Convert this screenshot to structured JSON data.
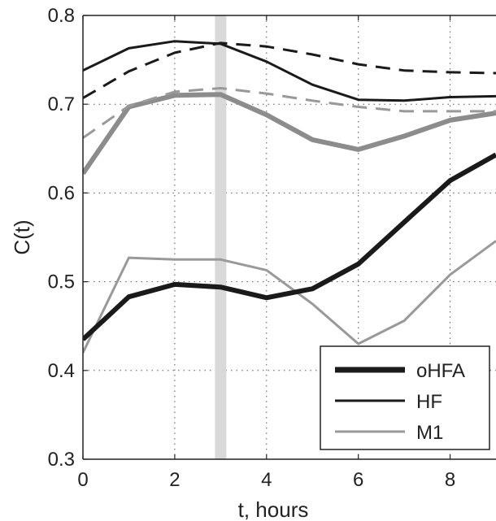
{
  "chart_data": {
    "type": "line",
    "xlabel": "t, hours",
    "ylabel": "C(t)",
    "xlim": [
      0,
      9
    ],
    "ylim": [
      0.3,
      0.8
    ],
    "xticks": [
      0,
      2,
      4,
      6,
      8
    ],
    "yticks": [
      0.3,
      0.4,
      0.5,
      0.6,
      0.7,
      0.8
    ],
    "xtick_labels": [
      "0",
      "2",
      "4",
      "6",
      "8"
    ],
    "ytick_labels": [
      "0.3",
      "0.4",
      "0.5",
      "0.6",
      "0.7",
      "0.8"
    ],
    "grid": true,
    "legend_position": "bottom-right",
    "marker_line": {
      "x": 3,
      "color": "#d9d9d9"
    },
    "x": [
      0,
      1,
      2,
      3,
      4,
      5,
      6,
      7,
      8,
      9
    ],
    "series": [
      {
        "name": "oHFA",
        "color": "#1a1a1a",
        "style": "solid",
        "weight": "thick",
        "in_legend": true,
        "values": [
          0.435,
          0.483,
          0.497,
          0.494,
          0.482,
          0.492,
          0.52,
          0.567,
          0.614,
          0.643
        ]
      },
      {
        "name": "HF",
        "color": "#1a1a1a",
        "style": "solid",
        "weight": "normal",
        "in_legend": true,
        "values": [
          0.738,
          0.763,
          0.771,
          0.768,
          0.748,
          0.722,
          0.705,
          0.704,
          0.708,
          0.709
        ]
      },
      {
        "name": "M1",
        "color": "#999999",
        "style": "solid",
        "weight": "normal",
        "in_legend": true,
        "values": [
          0.42,
          0.527,
          0.525,
          0.525,
          0.513,
          0.475,
          0.43,
          0.456,
          0.508,
          0.546
        ]
      },
      {
        "name": "",
        "color": "#8c8c8c",
        "style": "solid",
        "weight": "thick",
        "in_legend": false,
        "values": [
          0.622,
          0.697,
          0.71,
          0.711,
          0.688,
          0.66,
          0.649,
          0.664,
          0.682,
          0.69
        ]
      },
      {
        "name": "",
        "color": "#1a1a1a",
        "style": "dashed",
        "weight": "normal",
        "in_legend": false,
        "values": [
          0.707,
          0.737,
          0.758,
          0.769,
          0.765,
          0.756,
          0.745,
          0.738,
          0.736,
          0.735
        ]
      },
      {
        "name": "",
        "color": "#999999",
        "style": "dashed",
        "weight": "normal",
        "in_legend": false,
        "values": [
          0.662,
          0.698,
          0.714,
          0.718,
          0.712,
          0.704,
          0.697,
          0.692,
          0.692,
          0.692
        ]
      }
    ]
  }
}
